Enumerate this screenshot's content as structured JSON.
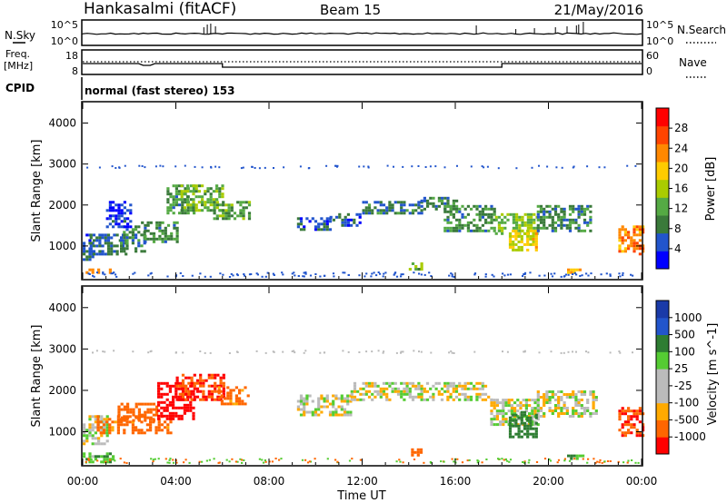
{
  "header": {
    "station": "Hankasalmi (fitACF)",
    "beam": "Beam 15",
    "date": "21/May/2016"
  },
  "noise_panel": {
    "left_label": "N.Sky",
    "right_label": "N.Search",
    "left_ticks": [
      "10^5",
      "10^0"
    ],
    "right_ticks": [
      "10^5",
      "10^0"
    ]
  },
  "freq_panel": {
    "left_label_1": "Freq.",
    "left_label_2": "[MHz]",
    "right_label": "Nave",
    "left_ticks": [
      "18",
      "8"
    ],
    "right_ticks": [
      "60",
      "0"
    ]
  },
  "cpid": {
    "label": "CPID",
    "text": "normal (fast stereo) 153"
  },
  "colors": {
    "power": [
      "#0000ff",
      "#2255cc",
      "#3a7a3a",
      "#55aa44",
      "#aacc00",
      "#ffcc00",
      "#ff8800",
      "#ff4400",
      "#ff0000"
    ],
    "velocity": [
      "#ff0000",
      "#ff6600",
      "#ffaa00",
      "#bbbbbb",
      "#bbbbbb",
      "#55cc33",
      "#2e7d32",
      "#2255cc",
      "#1a3aa8"
    ],
    "ground_scatter": "#bbbbbb"
  },
  "chart_data": [
    {
      "type": "heatmap",
      "name": "power",
      "ylabel": "Slant Range [km]",
      "yticks": [
        "1000",
        "2000",
        "3000",
        "4000"
      ],
      "ylim": [
        200,
        4500
      ],
      "xlim": [
        0,
        24
      ],
      "colorbar_label": "Power [dB]",
      "colorbar_ticks": [
        "4",
        "8",
        "12",
        "16",
        "20",
        "24",
        "28"
      ],
      "colorbar_range": [
        0,
        32
      ],
      "regions": [
        {
          "t0": 0.0,
          "t1": 0.4,
          "r0": 700,
          "r1": 1300,
          "level": 6
        },
        {
          "t0": 0.3,
          "t1": 1.9,
          "r0": 800,
          "r1": 1300,
          "level": 7
        },
        {
          "t0": 1.6,
          "t1": 2.6,
          "r0": 900,
          "r1": 1500,
          "level": 9
        },
        {
          "t0": 2.5,
          "t1": 4.0,
          "r0": 1100,
          "r1": 1600,
          "level": 10
        },
        {
          "t0": 1.0,
          "t1": 2.0,
          "r0": 1500,
          "r1": 2100,
          "level": 4
        },
        {
          "t0": 3.6,
          "t1": 4.8,
          "r0": 1800,
          "r1": 2500,
          "level": 10
        },
        {
          "t0": 4.2,
          "t1": 6.0,
          "r0": 1900,
          "r1": 2500,
          "level": 13
        },
        {
          "t0": 5.6,
          "t1": 7.1,
          "r0": 1700,
          "r1": 2100,
          "level": 12
        },
        {
          "t0": 9.2,
          "t1": 10.6,
          "r0": 1400,
          "r1": 1700,
          "level": 6
        },
        {
          "t0": 10.6,
          "t1": 12.0,
          "r0": 1500,
          "r1": 1800,
          "level": 6
        },
        {
          "t0": 12.0,
          "t1": 14.5,
          "r0": 1800,
          "r1": 2100,
          "level": 8
        },
        {
          "t0": 14.5,
          "t1": 16.2,
          "r0": 1900,
          "r1": 2200,
          "level": 9
        },
        {
          "t0": 15.5,
          "t1": 17.7,
          "r0": 1400,
          "r1": 2000,
          "level": 10
        },
        {
          "t0": 17.7,
          "t1": 19.5,
          "r0": 1300,
          "r1": 1800,
          "level": 14
        },
        {
          "t0": 18.3,
          "t1": 19.5,
          "r0": 900,
          "r1": 1400,
          "level": 18
        },
        {
          "t0": 19.5,
          "t1": 21.8,
          "r0": 1400,
          "r1": 2000,
          "level": 9
        },
        {
          "t0": 23.0,
          "t1": 24.0,
          "r0": 800,
          "r1": 1500,
          "level": 24
        },
        {
          "t0": 0.0,
          "t1": 1.2,
          "r0": 350,
          "r1": 450,
          "level": 22
        },
        {
          "t0": 20.8,
          "t1": 21.4,
          "r0": 350,
          "r1": 450,
          "level": 22
        },
        {
          "t0": 14.0,
          "t1": 14.5,
          "r0": 450,
          "r1": 600,
          "level": 14
        }
      ]
    },
    {
      "type": "heatmap",
      "name": "velocity",
      "ylabel": "Slant Range [km]",
      "yticks": [
        "1000",
        "2000",
        "3000",
        "4000"
      ],
      "ylim": [
        200,
        4500
      ],
      "xlim": [
        0,
        24
      ],
      "xlabel": "Time UT",
      "xticks": [
        "00:00",
        "04:00",
        "08:00",
        "12:00",
        "16:00",
        "20:00",
        "00:00"
      ],
      "colorbar_label": "Velocity [m s^-1]",
      "colorbar_ticks": [
        "1000",
        "500",
        "100",
        "25",
        "-25",
        "-100",
        "-500",
        "-1000"
      ],
      "regions": [
        {
          "t0": 0.0,
          "t1": 1.0,
          "r0": 700,
          "r1": 1400,
          "level": 0.0
        },
        {
          "t0": 0.6,
          "t1": 3.8,
          "r0": 1000,
          "r1": 1400,
          "level": -150
        },
        {
          "t0": 1.5,
          "t1": 3.2,
          "r0": 1300,
          "r1": 1700,
          "level": -400
        },
        {
          "t0": 3.2,
          "t1": 4.8,
          "r0": 1300,
          "r1": 2200,
          "level": -600
        },
        {
          "t0": 4.0,
          "t1": 6.0,
          "r0": 1800,
          "r1": 2400,
          "level": -500
        },
        {
          "t0": 5.8,
          "t1": 7.1,
          "r0": 1700,
          "r1": 2100,
          "level": -150
        },
        {
          "t0": 9.2,
          "t1": 11.5,
          "r0": 1400,
          "r1": 1900,
          "level": 0.0
        },
        {
          "t0": 11.5,
          "t1": 17.5,
          "r0": 1800,
          "r1": 2200,
          "level": 0.0
        },
        {
          "t0": 17.5,
          "t1": 19.6,
          "r0": 1200,
          "r1": 1800,
          "level": 0.0
        },
        {
          "t0": 18.3,
          "t1": 19.5,
          "r0": 900,
          "r1": 1500,
          "level": 300
        },
        {
          "t0": 19.5,
          "t1": 22.0,
          "r0": 1400,
          "r1": 2000,
          "level": 0.0
        },
        {
          "t0": 23.0,
          "t1": 24.0,
          "r0": 900,
          "r1": 1600,
          "level": -500
        },
        {
          "t0": 0.0,
          "t1": 1.3,
          "r0": 300,
          "r1": 500,
          "level": 80
        },
        {
          "t0": 20.8,
          "t1": 21.5,
          "r0": 350,
          "r1": 450,
          "level": 80
        },
        {
          "t0": 14.1,
          "t1": 14.5,
          "r0": 450,
          "r1": 600,
          "level": -200
        }
      ]
    }
  ]
}
